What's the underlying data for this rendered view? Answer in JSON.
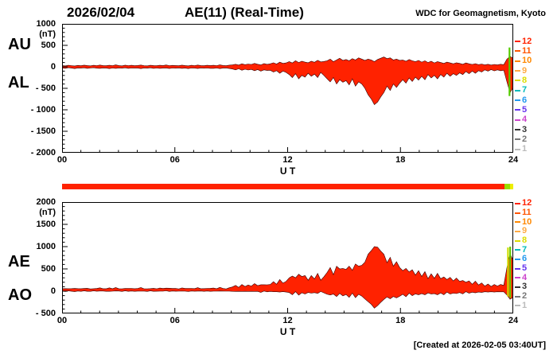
{
  "header": {
    "date": "2026/02/04",
    "title": "AE(11) (Real-Time)",
    "credit": "WDC for Geomagnetism, Kyoto"
  },
  "footer": {
    "created": "[Created at 2026-02-05 03:40UT]"
  },
  "station_scale": {
    "numbers": [
      12,
      11,
      10,
      9,
      8,
      7,
      6,
      5,
      4,
      3,
      2,
      1
    ],
    "colors": [
      "#ff2200",
      "#ff5500",
      "#ff8800",
      "#ffaa44",
      "#dddd00",
      "#00bbbb",
      "#2299ee",
      "#6633ee",
      "#cc44cc",
      "#333333",
      "#777777",
      "#bbbbbb"
    ]
  },
  "availability_bar": {
    "segments": [
      {
        "color": "#ff2200",
        "fraction": 0.98
      },
      {
        "color": "#99dd00",
        "fraction": 0.013
      },
      {
        "color": "#eeee00",
        "fraction": 0.007
      }
    ]
  },
  "chart_data": [
    {
      "type": "area",
      "title": "AU / AL auroral electrojet indices",
      "x_unit_label": "U T",
      "y_unit_label": "(nT)",
      "xlim": [
        0,
        24
      ],
      "ylim": [
        -2000,
        1000
      ],
      "x_step_hours": 0.1667,
      "grid": false,
      "fill_color": "#ff2200",
      "stroke_color": "#330000",
      "left_labels": [
        "AU",
        "AL"
      ],
      "xticks": [
        {
          "label": "00",
          "value": 0
        },
        {
          "label": "06",
          "value": 6
        },
        {
          "label": "12",
          "value": 12
        },
        {
          "label": "18",
          "value": 18
        },
        {
          "label": "24",
          "value": 24
        }
      ],
      "yticks": [
        {
          "label": "1000",
          "value": 1000
        },
        {
          "label": "500",
          "value": 500
        },
        {
          "label": "0",
          "value": 0
        },
        {
          "label": "- 500",
          "value": -500
        },
        {
          "label": "- 1000",
          "value": -1000
        },
        {
          "label": "- 1500",
          "value": -1500
        },
        {
          "label": "- 2000",
          "value": -2000
        }
      ],
      "end_markers": [
        {
          "x_hours": 23.8,
          "from": 450,
          "to": -680,
          "color": "#55cc00"
        }
      ],
      "series": [
        {
          "name": "AU",
          "values": [
            30,
            22,
            35,
            28,
            20,
            33,
            25,
            38,
            30,
            22,
            35,
            28,
            40,
            30,
            25,
            35,
            28,
            45,
            30,
            22,
            38,
            28,
            35,
            25,
            32,
            40,
            28,
            22,
            35,
            30,
            25,
            35,
            30,
            42,
            28,
            33,
            30,
            25,
            38,
            30,
            22,
            35,
            28,
            40,
            30,
            25,
            35,
            30,
            35,
            28,
            45,
            32,
            25,
            38,
            45,
            60,
            40,
            70,
            50,
            65,
            55,
            80,
            60,
            45,
            75,
            58,
            70,
            95,
            65,
            110,
            80,
            90,
            120,
            90,
            140,
            100,
            130,
            110,
            95,
            130,
            105,
            150,
            115,
            125,
            140,
            180,
            120,
            160,
            200,
            150,
            170,
            140,
            190,
            160,
            210,
            180,
            150,
            180,
            160,
            120,
            170,
            200,
            230,
            190,
            210,
            160,
            180,
            150,
            160,
            130,
            170,
            140,
            120,
            150,
            110,
            140,
            100,
            130,
            90,
            120,
            100,
            80,
            110,
            90,
            70,
            95,
            80,
            60,
            90,
            70,
            55,
            75,
            50,
            65,
            45,
            60,
            40,
            55,
            45,
            60,
            50,
            180,
            240,
            200
          ]
        },
        {
          "name": "AL",
          "values": [
            -25,
            -35,
            -20,
            -30,
            -40,
            -25,
            -30,
            -22,
            -35,
            -28,
            -20,
            -32,
            -35,
            -25,
            -30,
            -40,
            -28,
            -35,
            -25,
            -32,
            -22,
            -35,
            -28,
            -30,
            -30,
            -40,
            -25,
            -32,
            -22,
            -35,
            -28,
            -35,
            -30,
            -25,
            -38,
            -28,
            -32,
            -25,
            -35,
            -30,
            -40,
            -28,
            -30,
            -38,
            -25,
            -32,
            -28,
            -35,
            -35,
            -28,
            -40,
            -30,
            -25,
            -38,
            -50,
            -70,
            -45,
            -80,
            -55,
            -75,
            -60,
            -90,
            -65,
            -100,
            -70,
            -85,
            -80,
            -120,
            -90,
            -150,
            -100,
            -130,
            -180,
            -250,
            -160,
            -280,
            -200,
            -240,
            -150,
            -220,
            -170,
            -250,
            -130,
            -200,
            -280,
            -350,
            -250,
            -400,
            -300,
            -360,
            -320,
            -420,
            -280,
            -450,
            -350,
            -400,
            -500,
            -650,
            -750,
            -880,
            -820,
            -700,
            -600,
            -450,
            -550,
            -400,
            -480,
            -380,
            -300,
            -380,
            -260,
            -340,
            -240,
            -310,
            -220,
            -300,
            -180,
            -260,
            -200,
            -280,
            -180,
            -240,
            -150,
            -220,
            -160,
            -200,
            -140,
            -180,
            -110,
            -160,
            -100,
            -150,
            -90,
            -120,
            -70,
            -100,
            -65,
            -95,
            -70,
            -90,
            -80,
            -350,
            -600,
            -480
          ]
        }
      ]
    },
    {
      "type": "area",
      "title": "AE / AO auroral electrojet indices",
      "x_unit_label": "U T",
      "y_unit_label": "(nT)",
      "xlim": [
        0,
        24
      ],
      "ylim": [
        -500,
        2000
      ],
      "x_step_hours": 0.1667,
      "grid": false,
      "fill_color": "#ff2200",
      "stroke_color": "#330000",
      "left_labels": [
        "AE",
        "AO"
      ],
      "xticks": [
        {
          "label": "00",
          "value": 0
        },
        {
          "label": "06",
          "value": 6
        },
        {
          "label": "12",
          "value": 12
        },
        {
          "label": "18",
          "value": 18
        },
        {
          "label": "24",
          "value": 24
        }
      ],
      "yticks": [
        {
          "label": "2000",
          "value": 2000
        },
        {
          "label": "1500",
          "value": 1500
        },
        {
          "label": "1000",
          "value": 1000
        },
        {
          "label": "500",
          "value": 500
        },
        {
          "label": "0",
          "value": 0
        },
        {
          "label": "- 500",
          "value": -500
        }
      ],
      "end_markers": [
        {
          "x_hours": 23.72,
          "from": 980,
          "to": -120,
          "color": "#ccdd00"
        },
        {
          "x_hours": 23.84,
          "from": 1000,
          "to": -150,
          "color": "#66cc00"
        }
      ],
      "series": [
        {
          "name": "AE",
          "values": [
            55,
            57,
            55,
            58,
            60,
            58,
            55,
            60,
            65,
            50,
            55,
            60,
            75,
            55,
            55,
            75,
            56,
            80,
            55,
            54,
            60,
            63,
            63,
            55,
            62,
            80,
            53,
            54,
            57,
            65,
            53,
            70,
            60,
            67,
            66,
            61,
            62,
            50,
            73,
            60,
            62,
            63,
            58,
            78,
            55,
            57,
            63,
            65,
            70,
            56,
            85,
            62,
            50,
            76,
            95,
            130,
            85,
            150,
            105,
            140,
            115,
            170,
            125,
            145,
            145,
            143,
            150,
            215,
            155,
            260,
            180,
            220,
            300,
            340,
            300,
            380,
            330,
            350,
            245,
            350,
            275,
            400,
            245,
            325,
            420,
            530,
            370,
            560,
            500,
            510,
            490,
            560,
            470,
            610,
            560,
            580,
            650,
            830,
            910,
            1000,
            990,
            900,
            830,
            640,
            760,
            560,
            660,
            530,
            460,
            510,
            430,
            480,
            360,
            460,
            330,
            440,
            280,
            390,
            290,
            400,
            280,
            320,
            260,
            310,
            230,
            295,
            220,
            240,
            200,
            230,
            155,
            225,
            140,
            185,
            115,
            160,
            105,
            150,
            115,
            150,
            130,
            530,
            840,
            680
          ]
        },
        {
          "name": "AO",
          "values": [
            3,
            -7,
            8,
            -1,
            -10,
            4,
            -3,
            8,
            -3,
            -3,
            8,
            -2,
            3,
            3,
            -3,
            -3,
            0,
            5,
            3,
            -5,
            8,
            -4,
            4,
            -3,
            1,
            0,
            2,
            -5,
            7,
            -3,
            -2,
            0,
            0,
            9,
            -5,
            3,
            -1,
            0,
            2,
            0,
            -9,
            4,
            -1,
            1,
            3,
            -4,
            4,
            -3,
            0,
            0,
            3,
            1,
            0,
            0,
            -3,
            -5,
            -3,
            -5,
            -3,
            -5,
            -3,
            -5,
            -3,
            -28,
            3,
            -14,
            -5,
            -13,
            -13,
            -20,
            -10,
            -20,
            -30,
            -80,
            -10,
            -90,
            -35,
            -65,
            -28,
            -45,
            -33,
            -50,
            -8,
            -38,
            -70,
            -85,
            -65,
            -120,
            -50,
            -105,
            -75,
            -140,
            -45,
            -145,
            -70,
            -110,
            -175,
            -235,
            -295,
            -380,
            -325,
            -250,
            -185,
            -130,
            -170,
            -120,
            -150,
            -115,
            -70,
            -125,
            -45,
            -100,
            -60,
            -80,
            -55,
            -80,
            -40,
            -65,
            -55,
            -80,
            -40,
            -80,
            -20,
            -65,
            -45,
            -53,
            -30,
            -60,
            -10,
            -45,
            -23,
            -38,
            -20,
            -28,
            -13,
            -20,
            -13,
            -20,
            -13,
            -15,
            -15,
            -85,
            -180,
            -140
          ]
        }
      ]
    }
  ]
}
